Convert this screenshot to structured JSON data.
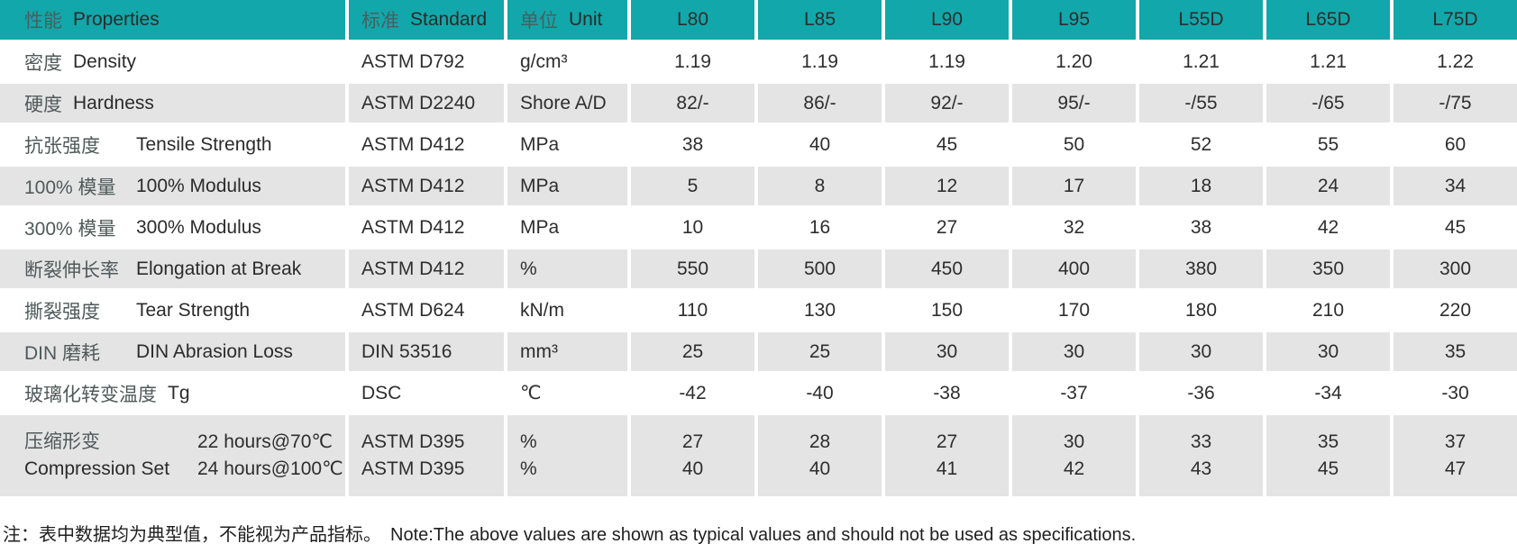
{
  "colors": {
    "header_bg": "#12a7aa",
    "row_alt_bg": "#e4e4e5"
  },
  "table": {
    "header": {
      "property_zh": "性能",
      "property_en": "Properties",
      "standard_zh": "标准",
      "standard_en": "Standard",
      "unit_zh": "单位",
      "unit_en": "Unit",
      "grades": [
        "L80",
        "L85",
        "L90",
        "L95",
        "L55D",
        "L65D",
        "L75D"
      ]
    },
    "rows": [
      {
        "zh": "密度",
        "en": "Density",
        "standard": "ASTM D792",
        "unit": "g/cm³",
        "values": [
          "1.19",
          "1.19",
          "1.19",
          "1.20",
          "1.21",
          "1.21",
          "1.22"
        ]
      },
      {
        "zh": "硬度",
        "en": "Hardness",
        "standard": "ASTM D2240",
        "unit": "Shore A/D",
        "values": [
          "82/-",
          "86/-",
          "92/-",
          "95/-",
          "-/55",
          "-/65",
          "-/75"
        ]
      },
      {
        "zh": "抗张强度",
        "en": "Tensile Strength",
        "standard": "ASTM D412",
        "unit": "MPa",
        "values": [
          "38",
          "40",
          "45",
          "50",
          "52",
          "55",
          "60"
        ]
      },
      {
        "zh": "100% 模量",
        "en": "100% Modulus",
        "standard": "ASTM D412",
        "unit": "MPa",
        "values": [
          "5",
          "8",
          "12",
          "17",
          "18",
          "24",
          "34"
        ]
      },
      {
        "zh": "300% 模量",
        "en": "300% Modulus",
        "standard": "ASTM D412",
        "unit": "MPa",
        "values": [
          "10",
          "16",
          "27",
          "32",
          "38",
          "42",
          "45"
        ]
      },
      {
        "zh": "断裂伸长率",
        "en": "Elongation at Break",
        "standard": "ASTM D412",
        "unit": "%",
        "values": [
          "550",
          "500",
          "450",
          "400",
          "380",
          "350",
          "300"
        ]
      },
      {
        "zh": "撕裂强度",
        "en": "Tear Strength",
        "standard": "ASTM D624",
        "unit": "kN/m",
        "values": [
          "110",
          "130",
          "150",
          "170",
          "180",
          "210",
          "220"
        ]
      },
      {
        "zh": "DIN 磨耗",
        "en": "DIN Abrasion Loss",
        "standard": "DIN 53516",
        "unit": "mm³",
        "values": [
          "25",
          "25",
          "30",
          "30",
          "30",
          "30",
          "35"
        ]
      },
      {
        "zh": "玻璃化转变温度",
        "en": "Tg",
        "standard": "DSC",
        "unit": "℃",
        "values": [
          "-42",
          "-40",
          "-38",
          "-37",
          "-36",
          "-34",
          "-30"
        ]
      }
    ],
    "compression_row": {
      "zh": "压缩形变",
      "en": "Compression Set",
      "conditions": [
        "22 hours@70℃",
        "24 hours@100℃"
      ],
      "standards": [
        "ASTM D395",
        "ASTM D395"
      ],
      "units": [
        "%",
        "%"
      ],
      "values": [
        [
          "27",
          "40"
        ],
        [
          "28",
          "40"
        ],
        [
          "27",
          "41"
        ],
        [
          "30",
          "42"
        ],
        [
          "33",
          "43"
        ],
        [
          "35",
          "45"
        ],
        [
          "37",
          "47"
        ]
      ]
    }
  },
  "footnote": {
    "zh": "注：表中数据均为典型值，不能视为产品指标。",
    "en": "Note:The above values are shown as typical values and should not be used as specifications."
  }
}
